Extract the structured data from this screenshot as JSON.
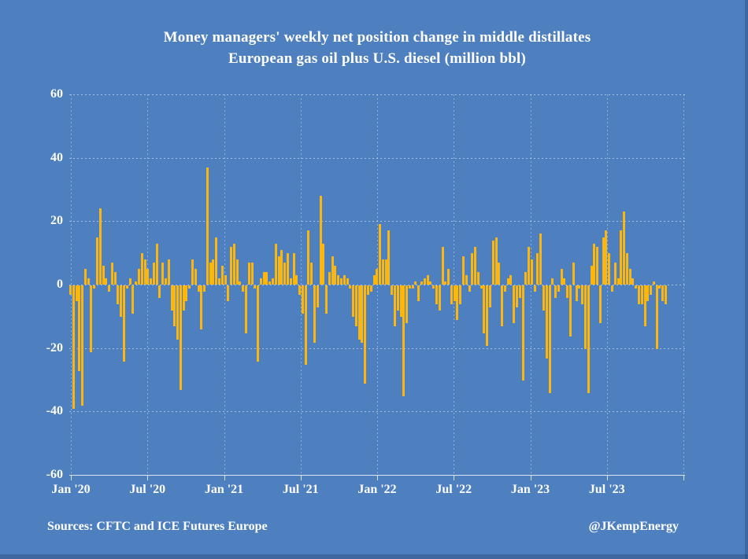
{
  "title": {
    "line1": "Money managers' weekly net position change in middle distillates",
    "line2": "European gas oil plus U.S. diesel (million bbl)"
  },
  "footer": {
    "sources": "Sources: CFTC and ICE Futures Europe",
    "attribution": "@JKempEnergy"
  },
  "colors": {
    "background": "#4E7FBE",
    "bar": "#FBB70F",
    "text": "#FFFFFF",
    "gridline": "rgba(255,255,255,0.5)"
  },
  "chart_data": {
    "type": "bar",
    "title": "Money managers' weekly net position change in middle distillates — European gas oil plus U.S. diesel (million bbl)",
    "xlabel": "",
    "ylabel": "",
    "unit": "million bbl",
    "x_frequency": "weekly",
    "ylim": [
      -60,
      60
    ],
    "ytick_step": 20,
    "yticks": [
      60,
      40,
      20,
      0,
      -20,
      -40,
      -60
    ],
    "xticklabels": [
      "Jan '20",
      "Jul '20",
      "Jan '21",
      "Jul '21",
      "Jan '22",
      "Jul '22",
      "Jan '23",
      "Jul '23"
    ],
    "grid": "dashed gridlines, horizontal every 20 and vertical every 6 months",
    "legend": "none",
    "values": [
      -3,
      -39,
      -5,
      -27,
      -38,
      5,
      2,
      -21,
      -1,
      15,
      24,
      6,
      2,
      -2,
      7,
      4,
      -6,
      -10,
      -24,
      -1,
      2,
      -9,
      1,
      5,
      10,
      8,
      5,
      2,
      7,
      13,
      -4,
      7,
      2,
      8,
      -8,
      -13,
      -17,
      -33,
      -8,
      -5,
      -1,
      8,
      5,
      -2,
      -14,
      -2,
      37,
      7,
      8,
      15,
      2,
      6,
      3,
      -5,
      12,
      13,
      8,
      1,
      -2,
      -15,
      7,
      7,
      -1,
      -24,
      2,
      4,
      4,
      1,
      2,
      13,
      9,
      11,
      7,
      10,
      2,
      10,
      3,
      -3,
      -9,
      -25,
      17,
      7,
      -18,
      -7,
      28,
      13,
      -9,
      4,
      9,
      6,
      3,
      2,
      3,
      2,
      -1,
      -10,
      -13,
      -17,
      -18,
      -31,
      -3,
      -2,
      3,
      5,
      19,
      8,
      8,
      17,
      -3,
      -13,
      -8,
      -10,
      -35,
      -12,
      -1,
      -1,
      1,
      -5,
      1,
      2,
      3,
      1,
      -1,
      -6,
      -8,
      12,
      1,
      5,
      -6,
      -5,
      -11,
      -6,
      9,
      3,
      -2,
      10,
      12,
      4,
      -1,
      -15,
      -19,
      -7,
      14,
      15,
      7,
      -13,
      -2,
      2,
      3,
      -12,
      -7,
      -4,
      -30,
      4,
      12,
      8,
      -2,
      10,
      16,
      -8,
      -23,
      -34,
      2,
      -4,
      -2,
      5,
      2,
      -4,
      -16,
      7,
      -5,
      -1,
      -6,
      -20,
      -34,
      6,
      13,
      12,
      -12,
      15,
      17,
      10,
      -2,
      7,
      2,
      17,
      23,
      10,
      5,
      2,
      -1,
      -6,
      -6,
      -13,
      -5,
      -3,
      1,
      -20,
      -1,
      -5,
      -6
    ]
  }
}
